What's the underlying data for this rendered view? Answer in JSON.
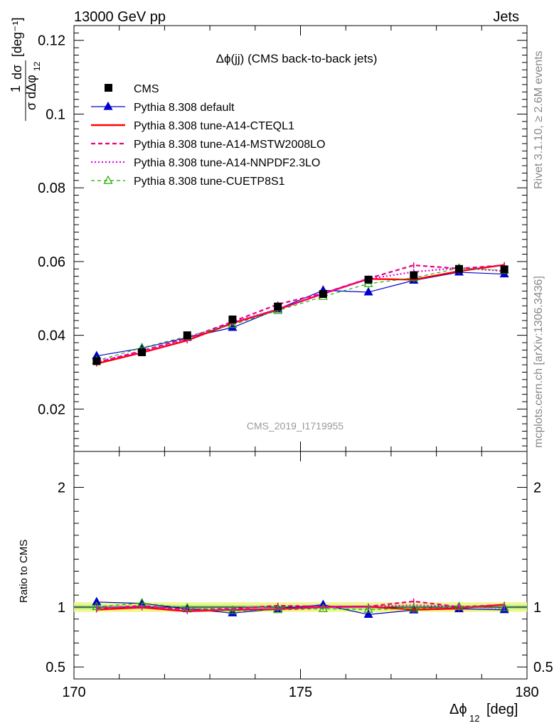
{
  "header": {
    "left": "13000 GeV pp",
    "right": "Jets"
  },
  "side_labels": {
    "rivet": "Rivet 3.1.10, ≥ 2.6M events",
    "source": "mcplots.cern.ch [arXiv:1306.3436]"
  },
  "chart_data": {
    "type": "line",
    "title": "Δϕ(jj) (CMS back-to-back jets)",
    "analysis_id": "CMS_2019_I1719955",
    "xlabel": "Δϕ",
    "xlabel_sub": "12",
    "xlabel_unit": "[deg]",
    "ylabel": "1/σ dσ/dΔϕ_12 [deg^-1]",
    "ratio_ylabel": "Ratio to CMS",
    "xlim": [
      170,
      180
    ],
    "ylim": [
      0.0085,
      0.124
    ],
    "ratio_ylim": [
      0.4,
      2.3
    ],
    "x_ticks": [
      170,
      175,
      180
    ],
    "y_ticks": [
      0.02,
      0.04,
      0.06,
      0.08,
      0.1,
      0.12
    ],
    "ratio_ticks": [
      0.5,
      1,
      2
    ],
    "x": [
      170.5,
      171.5,
      172.5,
      173.5,
      174.5,
      175.5,
      176.5,
      177.5,
      178.5,
      179.5
    ],
    "band": {
      "inner": [
        0.985,
        1.015
      ],
      "outer": [
        0.96,
        1.04
      ]
    },
    "series": [
      {
        "name": "CMS",
        "color": "#000000",
        "style": "data",
        "values": [
          0.033,
          0.0354,
          0.04,
          0.0443,
          0.0478,
          0.0512,
          0.0551,
          0.0563,
          0.058,
          0.0579
        ]
      },
      {
        "name": "Pythia 8.308 default",
        "color": "#0000cc",
        "style": "solid-thin",
        "marker": "triangle-filled",
        "values": [
          0.0344,
          0.0365,
          0.0394,
          0.0421,
          0.0471,
          0.0522,
          0.0517,
          0.0549,
          0.0571,
          0.0566
        ]
      },
      {
        "name": "Pythia 8.308 tune-A14-CTEQL1",
        "color": "#ff0000",
        "style": "solid-thick",
        "values": [
          0.0323,
          0.0353,
          0.0386,
          0.0433,
          0.047,
          0.0513,
          0.0553,
          0.0551,
          0.0574,
          0.0591
        ]
      },
      {
        "name": "Pythia 8.308 tune-A14-MSTW2008LO",
        "color": "#e6007e",
        "style": "dashed",
        "values": [
          0.0326,
          0.0358,
          0.0392,
          0.0437,
          0.0484,
          0.0514,
          0.0554,
          0.059,
          0.0581,
          0.059
        ]
      },
      {
        "name": "Pythia 8.308 tune-A14-NNPDF2.3LO",
        "color": "#e600e6",
        "style": "dotted",
        "values": [
          0.0328,
          0.0356,
          0.039,
          0.0435,
          0.0471,
          0.0512,
          0.0553,
          0.0572,
          0.0583,
          0.0574
        ]
      },
      {
        "name": "Pythia 8.308 tune-CUETP8S1",
        "color": "#22aa00",
        "style": "dashed-thin",
        "marker": "triangle-open",
        "values": [
          0.0331,
          0.0366,
          0.0397,
          0.0429,
          0.0467,
          0.0505,
          0.054,
          0.0556,
          0.0582,
          0.0576
        ]
      }
    ]
  }
}
